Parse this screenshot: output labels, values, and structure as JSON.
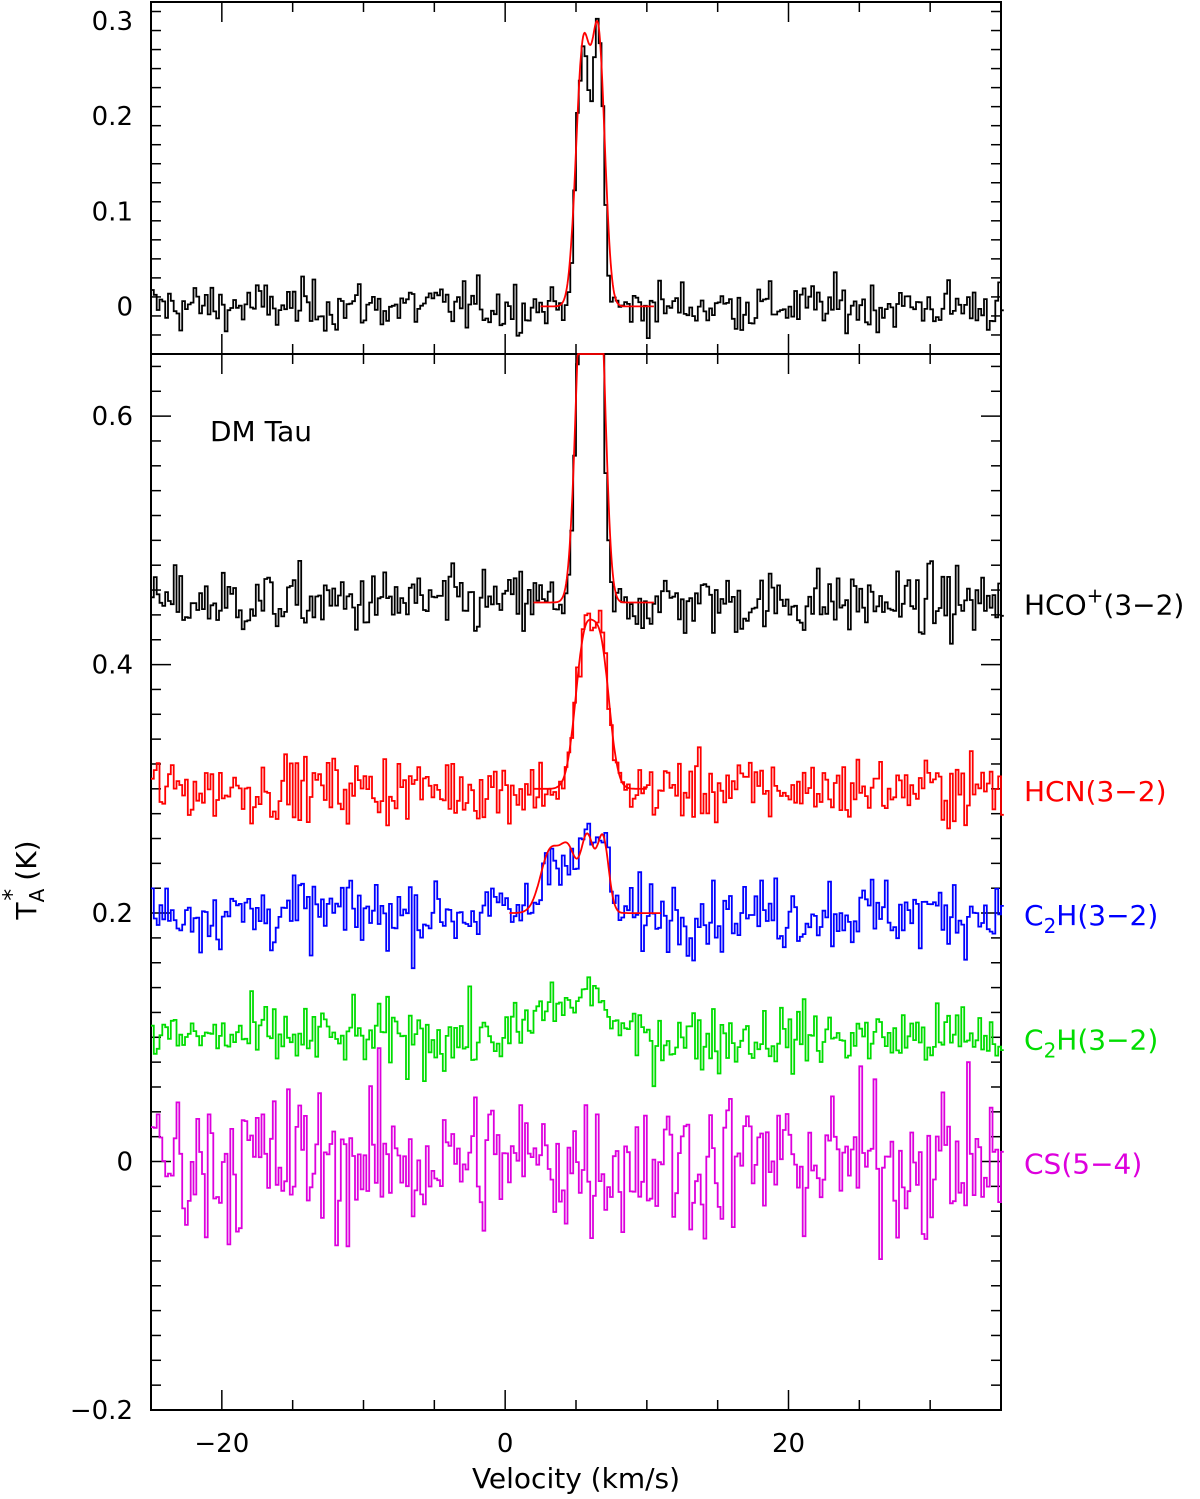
{
  "chart_data": [
    {
      "type": "line",
      "panel": "top",
      "xlim": [
        -25,
        35
      ],
      "ylim": [
        -0.05,
        0.32
      ],
      "y_ticks": [
        0,
        0.1,
        0.2,
        0.3
      ],
      "y_tick_labels": [
        "0",
        "0.1",
        "0.2",
        "0.3"
      ],
      "x_ticks": [
        -20,
        0,
        20
      ],
      "series": [
        {
          "label": "",
          "color": "#000000",
          "kind": "spectrum",
          "baseline": 0.0,
          "noise_rms": 0.013,
          "peaks": [
            {
              "center": 5.5,
              "amplitude": 0.27,
              "width": 0.45
            },
            {
              "center": 6.6,
              "amplitude": 0.29,
              "width": 0.35
            }
          ],
          "fit": {
            "color": "#ff0000",
            "x_range": [
              2.5,
              10.5
            ],
            "peaks": [
              {
                "center": 5.5,
                "amplitude": 0.27,
                "width": 0.5
              },
              {
                "center": 6.6,
                "amplitude": 0.27,
                "width": 0.45
              }
            ]
          }
        }
      ]
    },
    {
      "type": "line",
      "panel": "bottom",
      "xlabel": "Velocity (km/s)",
      "ylabel": "T_A^* (K)",
      "xlim": [
        -25,
        35
      ],
      "ylim": [
        -0.2,
        0.65
      ],
      "y_ticks": [
        -0.2,
        0,
        0.2,
        0.4,
        0.6
      ],
      "y_tick_labels": [
        "−0.2",
        "0",
        "0.2",
        "0.4",
        "0.6"
      ],
      "x_ticks": [
        -20,
        0,
        20
      ],
      "x_tick_labels": [
        "−20",
        "0",
        "20"
      ],
      "annotation": "DM Tau",
      "series": [
        {
          "label": "HCO+(3−2)",
          "label_parts": [
            "HCO",
            "+",
            "(3−2)"
          ],
          "color": "#000000",
          "baseline": 0.45,
          "noise_rms": 0.013,
          "peaks": [
            {
              "center": 5.5,
              "amplitude": 0.27,
              "width": 0.45
            },
            {
              "center": 6.6,
              "amplitude": 0.29,
              "width": 0.35
            }
          ],
          "fit": {
            "color": "#ff0000",
            "x_range": [
              2.0,
              10.5
            ],
            "peaks": [
              {
                "center": 5.5,
                "amplitude": 0.27,
                "width": 0.5
              },
              {
                "center": 6.6,
                "amplitude": 0.27,
                "width": 0.45
              }
            ]
          }
        },
        {
          "label": "HCN(3−2)",
          "label_parts": [
            "HCN(3−2)"
          ],
          "color": "#ff0000",
          "baseline": 0.3,
          "noise_rms": 0.013,
          "peaks": [
            {
              "center": 5.6,
              "amplitude": 0.12,
              "width": 0.6
            },
            {
              "center": 6.8,
              "amplitude": 0.11,
              "width": 0.55
            }
          ],
          "fit": {
            "color": "#ff0000",
            "x_range": [
              2.0,
              10.0
            ],
            "peaks": [
              {
                "center": 5.6,
                "amplitude": 0.115,
                "width": 0.65
              },
              {
                "center": 6.8,
                "amplitude": 0.1,
                "width": 0.6
              }
            ]
          }
        },
        {
          "label": "C2H(3−2)",
          "label_parts": [
            "C",
            "2",
            "H(3−2)"
          ],
          "color": "#0000ff",
          "baseline": 0.2,
          "noise_rms": 0.014,
          "peaks": [
            {
              "center": 3.2,
              "amplitude": 0.045,
              "width": 0.6
            },
            {
              "center": 4.5,
              "amplitude": 0.04,
              "width": 0.5
            },
            {
              "center": 5.8,
              "amplitude": 0.065,
              "width": 0.45
            },
            {
              "center": 6.9,
              "amplitude": 0.06,
              "width": 0.4
            }
          ],
          "fit": {
            "color": "#ff0000",
            "x_range": [
              0.3,
              11.0
            ],
            "peaks": [
              {
                "center": 3.2,
                "amplitude": 0.05,
                "width": 0.7
              },
              {
                "center": 4.5,
                "amplitude": 0.045,
                "width": 0.55
              },
              {
                "center": 5.8,
                "amplitude": 0.06,
                "width": 0.45
              },
              {
                "center": 6.9,
                "amplitude": 0.06,
                "width": 0.4
              }
            ]
          }
        },
        {
          "label": "C2H(3−2)",
          "label_parts": [
            "C",
            "2",
            "H(3−2)"
          ],
          "color": "#00dd00",
          "baseline": 0.1,
          "noise_rms": 0.013,
          "peaks": [
            {
              "center": 3.5,
              "amplitude": 0.025,
              "width": 1.2
            },
            {
              "center": 6.2,
              "amplitude": 0.035,
              "width": 1.0
            }
          ]
        },
        {
          "label": "CS(5−4)",
          "label_parts": [
            "CS(5−4)"
          ],
          "color": "#dd00dd",
          "baseline": 0.0,
          "noise_rms": 0.03,
          "peaks": []
        }
      ]
    }
  ]
}
